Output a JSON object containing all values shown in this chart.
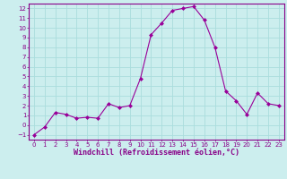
{
  "x": [
    0,
    1,
    2,
    3,
    4,
    5,
    6,
    7,
    8,
    9,
    10,
    11,
    12,
    13,
    14,
    15,
    16,
    17,
    18,
    19,
    20,
    21,
    22,
    23
  ],
  "y": [
    -1,
    -0.2,
    1.3,
    1.1,
    0.7,
    0.8,
    0.7,
    2.2,
    1.8,
    2.0,
    4.8,
    9.3,
    10.5,
    11.8,
    12.0,
    12.2,
    10.8,
    8.0,
    3.5,
    2.5,
    1.1,
    3.3,
    2.2,
    2.0
  ],
  "line_color": "#990099",
  "marker": "D",
  "marker_size": 2.0,
  "bg_color": "#cceeee",
  "grid_color": "#aadddd",
  "xlabel": "Windchill (Refroidissement éolien,°C)",
  "ylim": [
    -1.5,
    12.5
  ],
  "xlim": [
    -0.5,
    23.5
  ],
  "yticks": [
    -1,
    0,
    1,
    2,
    3,
    4,
    5,
    6,
    7,
    8,
    9,
    10,
    11,
    12
  ],
  "xticks": [
    0,
    1,
    2,
    3,
    4,
    5,
    6,
    7,
    8,
    9,
    10,
    11,
    12,
    13,
    14,
    15,
    16,
    17,
    18,
    19,
    20,
    21,
    22,
    23
  ],
  "tick_color": "#880088",
  "label_color": "#880088",
  "spine_color": "#880088",
  "axis_fontsize": 6.0,
  "tick_fontsize": 5.0,
  "xlabel_fontsize": 6.0
}
